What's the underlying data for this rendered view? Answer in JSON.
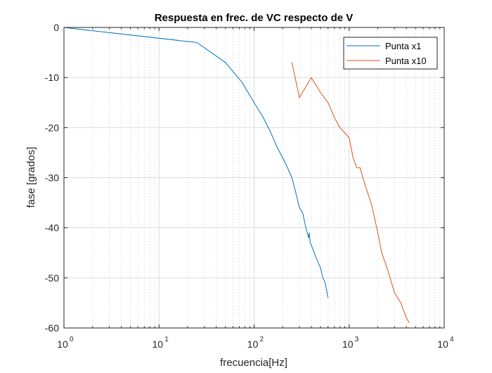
{
  "chart_data": {
    "type": "line",
    "title": "Respuesta en frec. de VC respecto de V",
    "xlabel": "frecuencia[Hz]",
    "ylabel": "fase [grados]",
    "xscale": "log",
    "xlim": [
      1,
      10000
    ],
    "ylim": [
      -60,
      0
    ],
    "grid": true,
    "legend_position": "top-right",
    "x_ticks": [
      {
        "base": "10",
        "exp": "0"
      },
      {
        "base": "10",
        "exp": "1"
      },
      {
        "base": "10",
        "exp": "2"
      },
      {
        "base": "10",
        "exp": "3"
      },
      {
        "base": "10",
        "exp": "4"
      }
    ],
    "y_ticks": [
      "0",
      "-10",
      "-20",
      "-30",
      "-40",
      "-50",
      "-60"
    ],
    "series": [
      {
        "name": "Punta x1",
        "color": "#0072BD",
        "points": [
          [
            1,
            0
          ],
          [
            25,
            -3
          ],
          [
            50,
            -7
          ],
          [
            75,
            -11
          ],
          [
            100,
            -15
          ],
          [
            125,
            -18
          ],
          [
            150,
            -21
          ],
          [
            175,
            -24
          ],
          [
            200,
            -26
          ],
          [
            225,
            -28
          ],
          [
            250,
            -30
          ],
          [
            275,
            -33
          ],
          [
            300,
            -36
          ],
          [
            325,
            -37
          ],
          [
            350,
            -40
          ],
          [
            375,
            -42
          ],
          [
            380,
            -41
          ],
          [
            390,
            -43
          ],
          [
            410,
            -44
          ],
          [
            450,
            -46
          ],
          [
            500,
            -48
          ],
          [
            530,
            -50
          ],
          [
            560,
            -51
          ],
          [
            600,
            -54
          ]
        ]
      },
      {
        "name": "Punta x10",
        "color": "#D95319",
        "points": [
          [
            250,
            -7
          ],
          [
            300,
            -14
          ],
          [
            400,
            -10
          ],
          [
            500,
            -13
          ],
          [
            600,
            -15
          ],
          [
            700,
            -18
          ],
          [
            800,
            -20
          ],
          [
            1000,
            -22
          ],
          [
            1100,
            -26
          ],
          [
            1200,
            -28
          ],
          [
            1300,
            -28
          ],
          [
            1500,
            -32
          ],
          [
            1700,
            -35
          ],
          [
            1800,
            -37
          ],
          [
            2000,
            -41
          ],
          [
            2200,
            -45
          ],
          [
            2500,
            -48
          ],
          [
            2700,
            -50
          ],
          [
            3000,
            -53
          ],
          [
            3500,
            -55
          ],
          [
            4000,
            -58
          ],
          [
            4300,
            -59
          ]
        ]
      }
    ]
  }
}
